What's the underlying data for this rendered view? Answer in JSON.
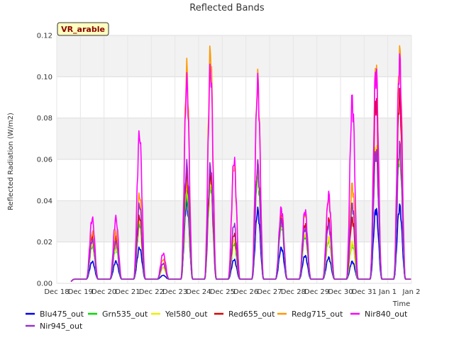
{
  "chart_data": {
    "type": "line",
    "title": "Reflected Bands",
    "xlabel": "Time",
    "ylabel": "Reflected Radiation (W/m2)",
    "badge": "VR_arable",
    "ylim": [
      0,
      0.12
    ],
    "xlim": [
      "Dec 18",
      "Jan 2"
    ],
    "x_ticks": [
      "Dec 18",
      "Dec 19",
      "Dec 20",
      "Dec 21",
      "Dec 22",
      "Dec 23",
      "Dec 24",
      "Dec 25",
      "Dec 26",
      "Dec 27",
      "Dec 28",
      "Dec 29",
      "Dec 30",
      "Dec 31",
      "Jan 1",
      "Jan 2"
    ],
    "y_ticks": [
      "0.00",
      "0.02",
      "0.04",
      "0.06",
      "0.08",
      "0.10",
      "0.12"
    ],
    "y_tick_values": [
      0,
      0.02,
      0.04,
      0.06,
      0.08,
      0.1,
      0.12
    ],
    "grid": true,
    "legend_position": "bottom",
    "baseline": 0.002,
    "days": [
      "Dec 18",
      "Dec 19",
      "Dec 20",
      "Dec 21",
      "Dec 22",
      "Dec 23",
      "Dec 24",
      "Dec 25",
      "Dec 26",
      "Dec 27",
      "Dec 28",
      "Dec 29",
      "Dec 30",
      "Dec 31",
      "Jan 1"
    ],
    "series": [
      {
        "name": "Blu475_out",
        "color": "#0000ee",
        "daily_peaks": [
          0.0,
          0.011,
          0.011,
          0.018,
          0.004,
          0.041,
          0.057,
          0.012,
          0.037,
          0.018,
          0.014,
          0.013,
          0.011,
          0.038,
          0.039
        ]
      },
      {
        "name": "Grn535_out",
        "color": "#00dd00",
        "daily_peaks": [
          0.0,
          0.019,
          0.018,
          0.03,
          0.008,
          0.045,
          0.05,
          0.02,
          0.055,
          0.03,
          0.024,
          0.022,
          0.02,
          0.068,
          0.066
        ]
      },
      {
        "name": "Yel580_out",
        "color": "#eeee00",
        "daily_peaks": [
          0.0,
          0.02,
          0.019,
          0.032,
          0.008,
          0.05,
          0.052,
          0.022,
          0.058,
          0.031,
          0.025,
          0.023,
          0.021,
          0.07,
          0.068
        ]
      },
      {
        "name": "Red655_out",
        "color": "#dd0000",
        "daily_peaks": [
          0.0,
          0.024,
          0.023,
          0.034,
          0.01,
          0.055,
          0.055,
          0.025,
          0.06,
          0.034,
          0.03,
          0.032,
          0.033,
          0.094,
          0.096
        ]
      },
      {
        "name": "Redg715_out",
        "color": "#ff9900",
        "daily_peaks": [
          0.0,
          0.026,
          0.026,
          0.045,
          0.012,
          0.109,
          0.118,
          0.06,
          0.104,
          0.037,
          0.036,
          0.044,
          0.05,
          0.111,
          0.117
        ]
      },
      {
        "name": "Nir840_out",
        "color": "#ff00ff",
        "daily_peaks": [
          0.0,
          0.033,
          0.033,
          0.076,
          0.015,
          0.102,
          0.109,
          0.063,
          0.102,
          0.038,
          0.037,
          0.045,
          0.094,
          0.109,
          0.113
        ]
      },
      {
        "name": "Nir945_out",
        "color": "#9932cc",
        "daily_peaks": [
          0.0,
          0.022,
          0.021,
          0.04,
          0.01,
          0.06,
          0.06,
          0.03,
          0.06,
          0.032,
          0.028,
          0.03,
          0.04,
          0.068,
          0.07
        ]
      }
    ]
  }
}
